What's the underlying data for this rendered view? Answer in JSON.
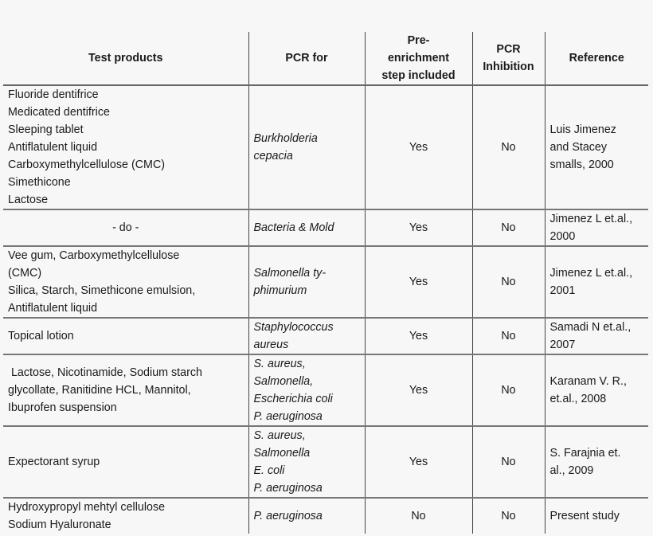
{
  "headers": [
    "Test products",
    "PCR for",
    "Pre-\nenrichment\nstep included",
    "PCR\nInhibition",
    "Reference"
  ],
  "rows": [
    {
      "products": [
        "Fluoride dentifrice",
        "Medicated dentifrice",
        "Sleeping tablet",
        "Antiflatulent liquid",
        "Carboxymethylcellulose (CMC)",
        "Simethicone",
        "Lactose"
      ],
      "pcr_for": [
        "Burkholderia",
        "cepacia"
      ],
      "pre_enrichment": "Yes",
      "inhibition": "No",
      "reference": [
        "Luis Jimenez",
        "and Stacey",
        "smalls, 2000"
      ]
    },
    {
      "products": [
        "- do -"
      ],
      "pcr_for": [
        "Bacteria & Mold"
      ],
      "pre_enrichment": "Yes",
      "inhibition": "No",
      "reference": [
        "Jimenez L et.al.,",
        "2000"
      ]
    },
    {
      "products": [
        "Vee gum, Carboxymethylcellulose",
        "(CMC)",
        "Silica, Starch, Simethicone emulsion,",
        "Antiflatulent liquid"
      ],
      "pcr_for": [
        "Salmonella ty-",
        "phimurium"
      ],
      "pre_enrichment": "Yes",
      "inhibition": "No",
      "reference": [
        "Jimenez L et.al.,",
        "2001"
      ]
    },
    {
      "products": [
        "Topical lotion"
      ],
      "pcr_for": [
        "Staphylococcus",
        "aureus"
      ],
      "pre_enrichment": "Yes",
      "inhibition": "No",
      "reference": [
        "Samadi N et.al.,",
        "2007"
      ]
    },
    {
      "products": [
        " Lactose, Nicotinamide, Sodium starch",
        "glycollate, Ranitidine HCL, Mannitol,",
        "Ibuprofen suspension"
      ],
      "pcr_for": [
        "S. aureus,",
        "Salmonella,",
        "Escherichia coli",
        "P. aeruginosa"
      ],
      "pre_enrichment": "Yes",
      "inhibition": "No",
      "reference": [
        "Karanam V. R.,",
        "et.al., 2008"
      ]
    },
    {
      "products": [
        "Expectorant syrup"
      ],
      "pcr_for": [
        "S. aureus,",
        "Salmonella",
        "E. coli",
        "P. aeruginosa"
      ],
      "pre_enrichment": "Yes",
      "inhibition": "No",
      "reference": [
        "S. Farajnia et.",
        "al., 2009"
      ]
    },
    {
      "products": [
        "Hydroxypropyl mehtyl cellulose",
        "Sodium Hyaluronate"
      ],
      "pcr_for": [
        "P. aeruginosa"
      ],
      "pre_enrichment": "No",
      "inhibition": "No",
      "reference": [
        "Present study"
      ]
    }
  ]
}
